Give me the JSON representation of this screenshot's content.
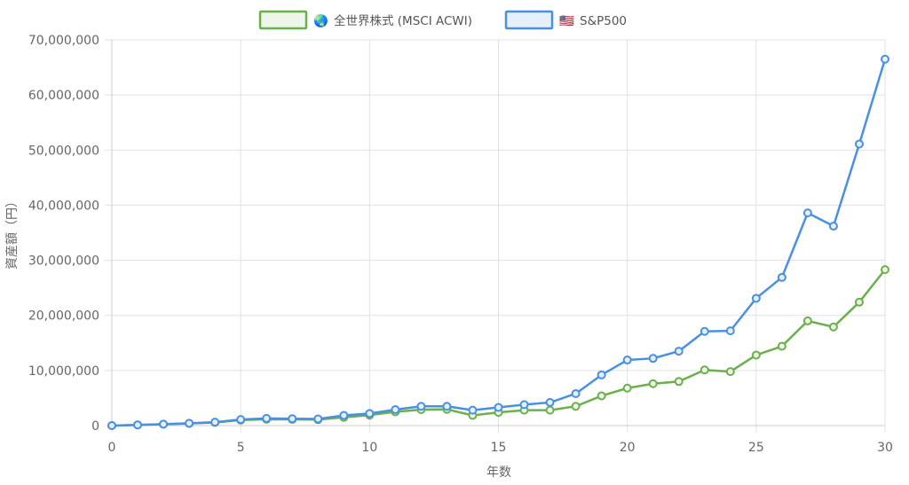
{
  "chart_data": {
    "type": "line",
    "title": "",
    "xlabel": "年数",
    "ylabel": "資産額（円）",
    "x": [
      0,
      1,
      2,
      3,
      4,
      5,
      6,
      7,
      8,
      9,
      10,
      11,
      12,
      13,
      14,
      15,
      16,
      17,
      18,
      19,
      20,
      21,
      22,
      23,
      24,
      25,
      26,
      27,
      28,
      29,
      30
    ],
    "x_ticks": [
      "0",
      "5",
      "10",
      "15",
      "20",
      "25",
      "30"
    ],
    "x_tick_values": [
      0,
      5,
      10,
      15,
      20,
      25,
      30
    ],
    "xlim": [
      0,
      30
    ],
    "ylim": [
      0,
      70000000
    ],
    "y_tick_values": [
      0,
      10000000,
      20000000,
      30000000,
      40000000,
      50000000,
      60000000,
      70000000
    ],
    "y_ticks": [
      "0",
      "10,000,000",
      "20,000,000",
      "30,000,000",
      "40,000,000",
      "50,000,000",
      "60,000,000",
      "70,000,000"
    ],
    "grid": true,
    "legend_position": "top-center",
    "series": [
      {
        "name": "全世界株式 (MSCI ACWI)",
        "icon": "globe-icon",
        "icon_glyph": "🌏",
        "color": "#6ab04c",
        "fill": "#eef6e9",
        "values": [
          0,
          120000,
          250000,
          380000,
          560000,
          1000000,
          1150000,
          1120000,
          1080000,
          1500000,
          1900000,
          2500000,
          2900000,
          2950000,
          1850000,
          2400000,
          2800000,
          2800000,
          3500000,
          5400000,
          6800000,
          7600000,
          8000000,
          10100000,
          9800000,
          12800000,
          14400000,
          19000000,
          17900000,
          22400000,
          28300000
        ]
      },
      {
        "name": "S&P500",
        "icon": "us-flag-icon",
        "icon_glyph": "🇺🇸",
        "color": "#4a90e2",
        "fill": "#e6f0fb",
        "values": [
          0,
          130000,
          260000,
          420000,
          620000,
          1100000,
          1300000,
          1250000,
          1200000,
          1850000,
          2200000,
          2900000,
          3500000,
          3500000,
          2800000,
          3300000,
          3800000,
          4200000,
          5800000,
          9200000,
          11900000,
          12200000,
          13500000,
          17100000,
          17200000,
          23100000,
          26900000,
          38600000,
          36200000,
          51100000,
          66500000
        ]
      }
    ]
  }
}
